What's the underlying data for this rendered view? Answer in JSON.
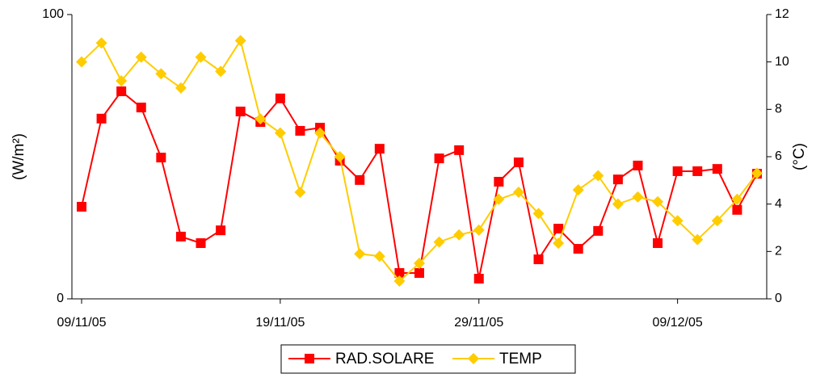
{
  "chart_data": {
    "type": "line",
    "categories": [
      "09/11/05",
      null,
      null,
      null,
      null,
      null,
      null,
      null,
      null,
      null,
      "19/11/05",
      null,
      null,
      null,
      null,
      null,
      null,
      null,
      null,
      null,
      "29/11/05",
      null,
      null,
      null,
      null,
      null,
      null,
      null,
      null,
      null,
      "09/12/05",
      null,
      null,
      null,
      null
    ],
    "ylabel": "(W/m²)",
    "y2label": "(°C)",
    "ylim": [
      0,
      100
    ],
    "yticks": [
      0,
      100
    ],
    "y2lim": [
      0,
      12
    ],
    "y2ticks": [
      0,
      2,
      4,
      6,
      8,
      10,
      12
    ],
    "grid": false,
    "legend": "bottom",
    "series": [
      {
        "name": "RAD.SOLARE",
        "color": "#ff0000",
        "marker": "square",
        "values": [
          32.4,
          63.4,
          73,
          67.3,
          49.7,
          21.9,
          19.6,
          24.1,
          65.9,
          62.2,
          70.5,
          59.1,
          60.2,
          48.6,
          41.8,
          52.8,
          9.1,
          9.1,
          49.4,
          52.3,
          7.1,
          41.2,
          48,
          13.9,
          24.7,
          17.6,
          23.9,
          42,
          46.9,
          19.6,
          44.9,
          44.9,
          45.7,
          31.3,
          44
        ]
      },
      {
        "name": "TEMP",
        "color": "#ffcc00",
        "marker": "diamond",
        "axis": "y2",
        "values": [
          10.0,
          10.8,
          9.2,
          10.2,
          9.5,
          8.9,
          10.2,
          9.6,
          10.9,
          7.6,
          7.0,
          4.5,
          7.0,
          6.0,
          1.9,
          1.8,
          0.75,
          1.5,
          2.4,
          2.7,
          2.9,
          4.2,
          4.5,
          3.6,
          2.35,
          4.6,
          5.2,
          4.0,
          4.3,
          4.1,
          3.3,
          2.5,
          3.3,
          4.2,
          5.3
        ]
      }
    ]
  }
}
